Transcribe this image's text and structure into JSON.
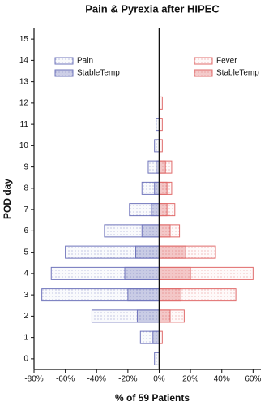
{
  "chart_data": {
    "type": "butterfly_bar",
    "title": "Pain & Pyrexia after HIPEC",
    "x_label": "% of 59 Patients",
    "y_label": "POD day",
    "categories": [
      0,
      1,
      2,
      3,
      4,
      5,
      6,
      7,
      8,
      9,
      10,
      11,
      12,
      13,
      14,
      15
    ],
    "series": [
      {
        "name": "Pain",
        "color": "#6f74bb",
        "values": [
          -3,
          -12,
          -43,
          -75,
          -69,
          -60,
          -35,
          -19,
          -11,
          -7,
          -3,
          -2,
          0,
          0,
          0,
          0
        ]
      },
      {
        "name": "StableTemp",
        "color": "#6f74bb",
        "values": [
          0,
          -4,
          -14,
          -20,
          -22,
          -15,
          -11,
          -5,
          -3,
          -2,
          0,
          0,
          0,
          0,
          0,
          0
        ]
      },
      {
        "name": "Fever",
        "color": "#e06b6b",
        "values": [
          0,
          2,
          16,
          49,
          60,
          36,
          13,
          10,
          8,
          8,
          2,
          2,
          2,
          0,
          0,
          0
        ]
      },
      {
        "name": "StableTemp",
        "color": "#e06b6b",
        "values": [
          0,
          0,
          7,
          14,
          20,
          17,
          7,
          5,
          5,
          4,
          0,
          0,
          0,
          0,
          0,
          0
        ]
      }
    ],
    "xlim": [
      -80,
      65
    ],
    "xticks": [
      {
        "value": -80,
        "label": "-80%"
      },
      {
        "value": -60,
        "label": "-60%"
      },
      {
        "value": -40,
        "label": "-40%"
      },
      {
        "value": -20,
        "label": "-20%"
      },
      {
        "value": 0,
        "label": "0%"
      },
      {
        "value": 20,
        "label": "20%"
      },
      {
        "value": 40,
        "label": "40%"
      },
      {
        "value": 60,
        "label": "60%"
      }
    ],
    "ylim": [
      -0.5,
      15.5
    ]
  }
}
